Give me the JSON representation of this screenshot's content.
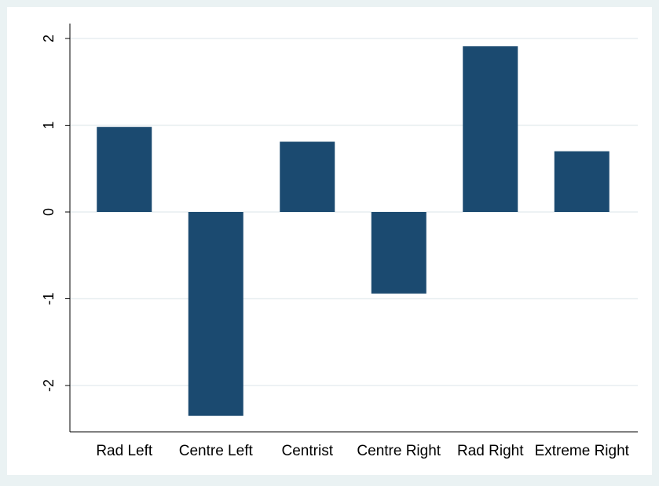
{
  "chart_data": {
    "type": "bar",
    "title": "",
    "xlabel": "",
    "ylabel": "",
    "categories": [
      "Rad Left",
      "Centre Left",
      "Centrist",
      "Centre Right",
      "Rad Right",
      "Extreme Right"
    ],
    "values": [
      0.98,
      -2.35,
      0.81,
      -0.94,
      1.91,
      0.7
    ],
    "ylim": [
      -2.5,
      2.2
    ],
    "yticks": [
      2,
      1,
      0,
      -1,
      -2
    ],
    "ytick_labels": [
      "2",
      "1",
      "0",
      "-1",
      "-2"
    ],
    "grid": true,
    "legend": "none",
    "colors": {
      "bar": "#1b4a70",
      "outer_background": "#eaf2f3",
      "plot_background": "#ffffff",
      "gridline": "#e7eef0",
      "axis": "#000000"
    }
  }
}
